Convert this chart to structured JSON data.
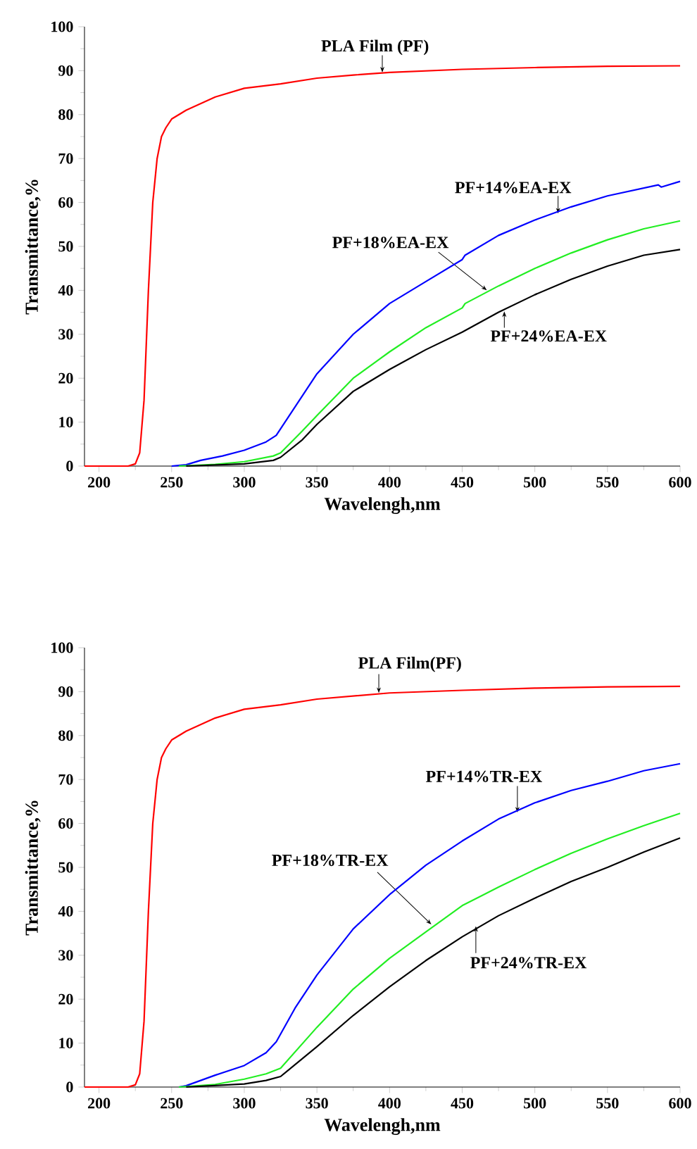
{
  "chart_data": [
    {
      "type": "line",
      "xlabel": "Wavelengh,nm",
      "ylabel": "Transmittance,%",
      "xlim": [
        190,
        600
      ],
      "ylim": [
        0,
        100
      ],
      "xticks": [
        200,
        250,
        300,
        350,
        400,
        450,
        500,
        550,
        600
      ],
      "yticks": [
        0,
        10,
        20,
        30,
        40,
        50,
        60,
        70,
        80,
        90,
        100
      ],
      "series": [
        {
          "color": "#ff0000",
          "x": [
            190,
            220,
            225,
            228,
            231,
            234,
            237,
            240,
            243,
            246,
            250,
            260,
            280,
            300,
            325,
            350,
            375,
            400,
            450,
            500,
            550,
            600
          ],
          "values": [
            0,
            0,
            0.5,
            3,
            15,
            40,
            60,
            70,
            75,
            77,
            79,
            81,
            84,
            86,
            87,
            88.3,
            89,
            89.6,
            90.3,
            90.7,
            91,
            91.1
          ]
        },
        {
          "color": "#0000ff",
          "x": [
            250,
            260,
            270,
            285,
            300,
            315,
            322,
            330,
            340,
            350,
            375,
            400,
            425,
            450,
            452,
            475,
            500,
            525,
            550,
            585,
            587,
            600
          ],
          "values": [
            0,
            0.3,
            1.3,
            2.3,
            3.6,
            5.5,
            7,
            11,
            16,
            21,
            30,
            37,
            42,
            47,
            48,
            52.5,
            56,
            59,
            61.5,
            64,
            63.5,
            64.8
          ]
        },
        {
          "color": "#22ee22",
          "x": [
            255,
            280,
            300,
            320,
            325,
            340,
            350,
            375,
            400,
            425,
            450,
            452,
            475,
            500,
            525,
            550,
            575,
            600
          ],
          "values": [
            0,
            0.4,
            1,
            2.3,
            3,
            8,
            11.5,
            20,
            26,
            31.5,
            36,
            37,
            41,
            45,
            48.5,
            51.5,
            54,
            55.8
          ]
        },
        {
          "color": "#000000",
          "x": [
            260,
            300,
            320,
            325,
            340,
            350,
            375,
            400,
            425,
            450,
            475,
            500,
            525,
            550,
            575,
            600
          ],
          "values": [
            0,
            0.5,
            1.3,
            2,
            6,
            9.5,
            17,
            22,
            26.5,
            30.5,
            35,
            39,
            42.5,
            45.5,
            48,
            49.3
          ]
        }
      ],
      "annotations": [
        {
          "text": "PLA Film (PF)",
          "x": 395,
          "y": 89.6
        },
        {
          "text": "PF+14%EA-EX",
          "x": 516,
          "y": 57.5
        },
        {
          "text": "PF+18%EA-EX",
          "x": 467,
          "y": 40
        },
        {
          "text": "PF+24%EA-EX",
          "x": 479,
          "y": 35.2
        }
      ]
    },
    {
      "type": "line",
      "xlabel": "Wavelengh,nm",
      "ylabel": "Transmittance,%",
      "xlim": [
        190,
        600
      ],
      "ylim": [
        0,
        100
      ],
      "xticks": [
        200,
        250,
        300,
        350,
        400,
        450,
        500,
        550,
        600
      ],
      "yticks": [
        0,
        10,
        20,
        30,
        40,
        50,
        60,
        70,
        80,
        90,
        100
      ],
      "series": [
        {
          "color": "#ff0000",
          "x": [
            190,
            220,
            225,
            228,
            231,
            234,
            237,
            240,
            243,
            246,
            250,
            260,
            280,
            300,
            325,
            350,
            375,
            400,
            450,
            500,
            550,
            600
          ],
          "values": [
            0,
            0,
            0.5,
            3,
            15,
            40,
            60,
            70,
            75,
            77,
            79,
            81,
            84,
            86,
            87,
            88.3,
            89,
            89.7,
            90.3,
            90.8,
            91.1,
            91.2
          ]
        },
        {
          "color": "#0000ff",
          "x": [
            255,
            260,
            280,
            300,
            315,
            322,
            335,
            350,
            375,
            400,
            425,
            450,
            475,
            500,
            525,
            550,
            575,
            600
          ],
          "values": [
            0,
            0.3,
            2.7,
            4.9,
            7.8,
            10.3,
            18,
            25.5,
            36,
            43.8,
            50.5,
            56,
            61,
            64.7,
            67.5,
            69.6,
            72,
            73.6
          ]
        },
        {
          "color": "#22ee22",
          "x": [
            255,
            280,
            300,
            315,
            325,
            350,
            375,
            400,
            425,
            450,
            475,
            500,
            525,
            550,
            575,
            600
          ],
          "values": [
            0,
            0.6,
            1.8,
            3,
            4.3,
            13.6,
            22.3,
            29.3,
            35.3,
            41.3,
            45.5,
            49.5,
            53.2,
            56.5,
            59.5,
            62.3
          ]
        },
        {
          "color": "#000000",
          "x": [
            260,
            300,
            315,
            325,
            350,
            375,
            400,
            425,
            450,
            475,
            500,
            525,
            550,
            575,
            600
          ],
          "values": [
            0,
            0.7,
            1.5,
            2.4,
            9.2,
            16.3,
            22.8,
            28.8,
            34.2,
            39,
            43,
            46.8,
            50,
            53.5,
            56.7
          ]
        }
      ],
      "annotations": [
        {
          "text": "PLA Film(PF)",
          "x": 392.6,
          "y": 89.7
        },
        {
          "text": "PF+14%TR-EX",
          "x": 488,
          "y": 62.5
        },
        {
          "text": "PF+18%TR-EX",
          "x": 428.8,
          "y": 37
        },
        {
          "text": "PF+24%TR-EX",
          "x": 459.4,
          "y": 36.6
        }
      ]
    }
  ]
}
